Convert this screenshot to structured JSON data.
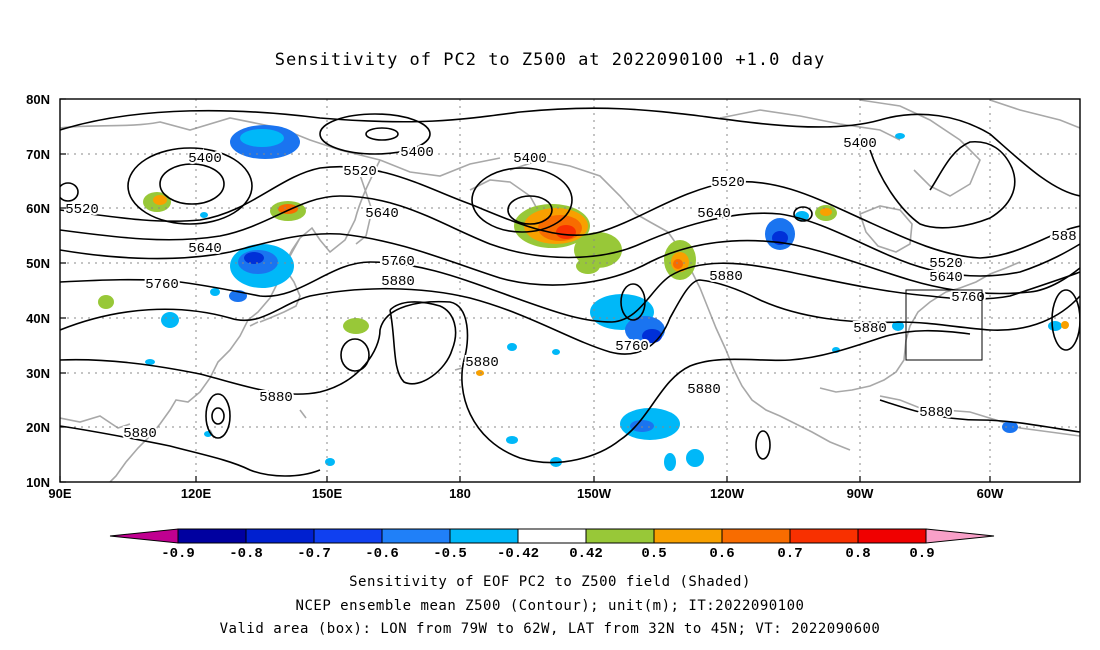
{
  "title": "Sensitivity of PC2 to Z500 at 2022090100 +1.0 day",
  "lat_labels": [
    "80N",
    "70N",
    "60N",
    "50N",
    "40N",
    "30N",
    "20N",
    "10N"
  ],
  "lon_labels": [
    "90E",
    "120E",
    "150E",
    "180",
    "150W",
    "120W",
    "90W",
    "60W"
  ],
  "contour_labels": [
    "5400",
    "5400",
    "5400",
    "5400",
    "5520",
    "5520",
    "5520",
    "5520",
    "5640",
    "5640",
    "5640",
    "5640",
    "5760",
    "5760",
    "5760",
    "5760",
    "5880",
    "5880",
    "5880",
    "5880",
    "5880",
    "5880",
    "5880",
    "5880",
    "588"
  ],
  "colorbar": {
    "labels": [
      "-0.9",
      "-0.8",
      "-0.7",
      "-0.6",
      "-0.5",
      "-0.42",
      "0.42",
      "0.5",
      "0.6",
      "0.7",
      "0.8",
      "0.9"
    ],
    "colors": [
      "#c00090",
      "#0000a0",
      "#0020d0",
      "#1040f0",
      "#2080f8",
      "#00b8f8",
      "#ffffff",
      "#98c838",
      "#f8a000",
      "#f86c00",
      "#f83000",
      "#f00000",
      "#f8a0c8"
    ]
  },
  "valid_box": {
    "lon": [
      "79W",
      "62W"
    ],
    "lat": [
      "32N",
      "45N"
    ]
  },
  "captions": [
    "Sensitivity of EOF PC2 to Z500 field (Shaded)",
    "NCEP ensemble mean Z500 (Contour); unit(m); IT:2022090100",
    "Valid area (box): LON from 79W to 62W, LAT from 32N to 45N; VT: 2022090600"
  ]
}
